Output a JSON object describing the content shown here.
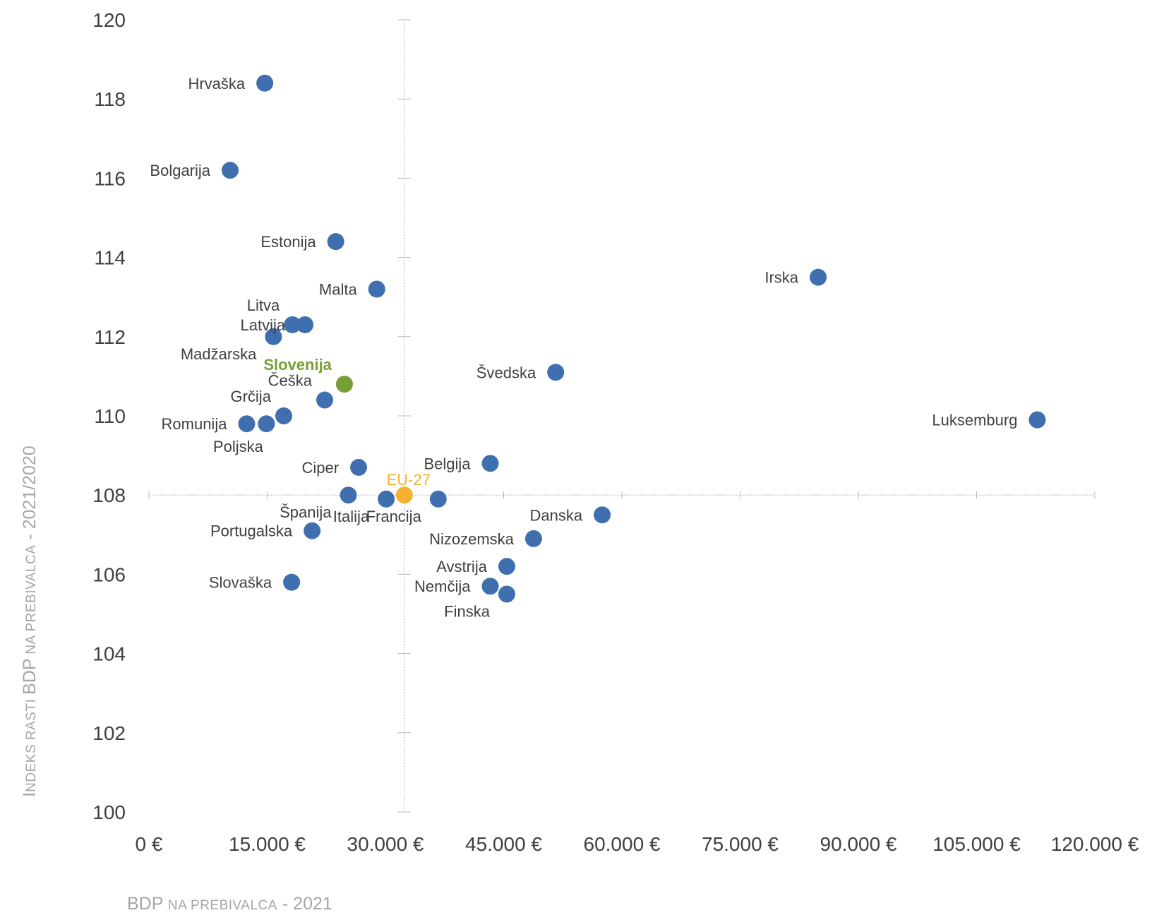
{
  "chart_data": {
    "type": "scatter",
    "xlabel": "BDP na prebivalca - 2021",
    "xlabel_parts": [
      {
        "text": "BDP ",
        "style": "large"
      },
      {
        "text": "NA PREBIVALCA",
        "style": "smallcaps"
      },
      {
        "text": " - 2021",
        "style": "large"
      }
    ],
    "ylabel": "Indeks rasti BDP na prebivalca - 2021/2020",
    "ylabel_parts": [
      {
        "text": "I",
        "style": "large"
      },
      {
        "text": "NDEKS RASTI ",
        "style": "smallcaps"
      },
      {
        "text": "BDP",
        "style": "large"
      },
      {
        "text": " NA PREBIVALCA",
        "style": "smallcaps"
      },
      {
        "text": " - 2021/2020",
        "style": "large"
      }
    ],
    "xlim": [
      0,
      120000
    ],
    "ylim": [
      100,
      120
    ],
    "x_ticks": [
      0,
      15000,
      30000,
      45000,
      60000,
      75000,
      90000,
      105000,
      120000
    ],
    "x_tick_labels": [
      "0 €",
      "15.000 €",
      "30.000 €",
      "45.000 €",
      "60.000 €",
      "75.000 €",
      "90.000 €",
      "105.000 €",
      "120.000 €"
    ],
    "y_ticks": [
      100,
      102,
      104,
      106,
      108,
      110,
      112,
      114,
      116,
      118,
      120
    ],
    "y_tick_labels": [
      "100",
      "102",
      "104",
      "106",
      "108",
      "110",
      "112",
      "114",
      "116",
      "118",
      "120"
    ],
    "crosshair": {
      "x": 32400,
      "y": 108.0
    },
    "colors": {
      "default": "#3f6fae",
      "Slovenija": "#76a035",
      "EU-27": "#f5b12f"
    },
    "points": [
      {
        "name": "Hrvaška",
        "x": 14700,
        "y": 118.4,
        "label_side": "left"
      },
      {
        "name": "Bolgarija",
        "x": 10300,
        "y": 116.2,
        "label_side": "left"
      },
      {
        "name": "Estonija",
        "x": 23700,
        "y": 114.4,
        "label_side": "left"
      },
      {
        "name": "Malta",
        "x": 28900,
        "y": 113.2,
        "label_side": "left"
      },
      {
        "name": "Litva",
        "x": 18200,
        "y": 112.3,
        "label_side": "above-left"
      },
      {
        "name": "Latvija",
        "x": 19800,
        "y": 112.3,
        "label_side": "left"
      },
      {
        "name": "Madžarska",
        "x": 15800,
        "y": 112.0,
        "label_side": "below-left"
      },
      {
        "name": "Slovenija",
        "x": 24800,
        "y": 110.8,
        "label_side": "above-left"
      },
      {
        "name": "Češka",
        "x": 22300,
        "y": 110.4,
        "label_side": "above-left"
      },
      {
        "name": "Grčija",
        "x": 17100,
        "y": 110.0,
        "label_side": "above-left"
      },
      {
        "name": "Romunija",
        "x": 12400,
        "y": 109.8,
        "label_side": "left"
      },
      {
        "name": "Poljska",
        "x": 14900,
        "y": 109.8,
        "label_side": "below"
      },
      {
        "name": "Ciper",
        "x": 26600,
        "y": 108.7,
        "label_side": "left"
      },
      {
        "name": "EU-27",
        "x": 32400,
        "y": 108.0,
        "label_side": "above"
      },
      {
        "name": "Španija",
        "x": 25300,
        "y": 108.0,
        "label_side": "below-left"
      },
      {
        "name": "Italija",
        "x": 30100,
        "y": 107.9,
        "label_side": "below-left"
      },
      {
        "name": "Francija",
        "x": 36700,
        "y": 107.9,
        "label_side": "below-left"
      },
      {
        "name": "Portugalska",
        "x": 20700,
        "y": 107.1,
        "label_side": "left"
      },
      {
        "name": "Slovaška",
        "x": 18100,
        "y": 105.8,
        "label_side": "left"
      },
      {
        "name": "Belgija",
        "x": 43300,
        "y": 108.8,
        "label_side": "left"
      },
      {
        "name": "Danska",
        "x": 57500,
        "y": 107.5,
        "label_side": "left"
      },
      {
        "name": "Nizozemska",
        "x": 48800,
        "y": 106.9,
        "label_side": "left"
      },
      {
        "name": "Avstrija",
        "x": 45400,
        "y": 106.2,
        "label_side": "left"
      },
      {
        "name": "Nemčija",
        "x": 43300,
        "y": 105.7,
        "label_side": "left"
      },
      {
        "name": "Finska",
        "x": 45400,
        "y": 105.5,
        "label_side": "below-left"
      },
      {
        "name": "Švedska",
        "x": 51600,
        "y": 111.1,
        "label_side": "left"
      },
      {
        "name": "Irska",
        "x": 84900,
        "y": 113.5,
        "label_side": "left"
      },
      {
        "name": "Luksemburg",
        "x": 112700,
        "y": 109.9,
        "label_side": "left"
      }
    ]
  }
}
